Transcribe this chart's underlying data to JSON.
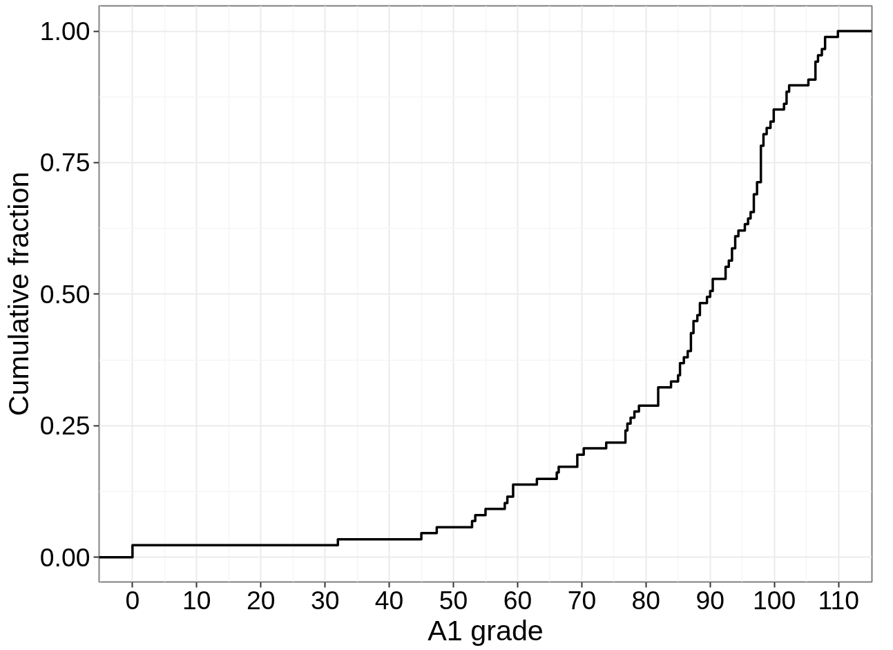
{
  "chart_data": {
    "type": "step",
    "xlabel": "A1 grade",
    "ylabel": "Cumulative fraction",
    "x": [
      -5.2,
      0,
      32,
      45,
      47.4,
      52.9,
      53.4,
      55,
      58,
      58.4,
      59.3,
      63,
      66.1,
      66.4,
      69.3,
      70.3,
      73.8,
      76.8,
      77.1,
      77.6,
      78.2,
      78.9,
      81.9,
      83.9,
      85,
      85.3,
      85.9,
      86.5,
      87,
      87.4,
      88,
      88.4,
      89.5,
      90,
      90.4,
      92.4,
      92.9,
      93.4,
      93.9,
      94.4,
      95.4,
      95.9,
      96.3,
      96.8,
      97.3,
      97.9,
      98.3,
      98.8,
      99.4,
      99.9,
      101.5,
      101.9,
      102.3,
      105.3,
      106.4,
      106.8,
      107.4,
      107.9,
      109.9,
      115.2
    ],
    "series": [
      {
        "color": "#000000",
        "values": [
          0,
          0.023,
          0.034,
          0.046,
          0.057,
          0.069,
          0.08,
          0.092,
          0.103,
          0.115,
          0.138,
          0.149,
          0.161,
          0.172,
          0.195,
          0.207,
          0.218,
          0.241,
          0.254,
          0.265,
          0.277,
          0.288,
          0.323,
          0.334,
          0.346,
          0.369,
          0.38,
          0.392,
          0.426,
          0.449,
          0.46,
          0.483,
          0.495,
          0.506,
          0.529,
          0.552,
          0.564,
          0.587,
          0.61,
          0.621,
          0.633,
          0.644,
          0.656,
          0.69,
          0.713,
          0.782,
          0.804,
          0.816,
          0.828,
          0.851,
          0.862,
          0.885,
          0.897,
          0.908,
          0.942,
          0.954,
          0.966,
          0.989,
          1.0,
          1.0
        ]
      }
    ],
    "xlim": [
      -5.2,
      115.2
    ],
    "ylim": [
      -0.047,
      1.048
    ],
    "xticks": [
      0,
      10,
      20,
      30,
      40,
      50,
      60,
      70,
      80,
      90,
      100,
      110
    ],
    "yticks": [
      {
        "value": 0,
        "label": "0.00"
      },
      {
        "value": 0.25,
        "label": "0.25"
      },
      {
        "value": 0.5,
        "label": "0.50"
      },
      {
        "value": 0.75,
        "label": "0.75"
      },
      {
        "value": 1,
        "label": "1.00"
      }
    ],
    "grid": true,
    "marker": "none",
    "line_style": "solid"
  }
}
